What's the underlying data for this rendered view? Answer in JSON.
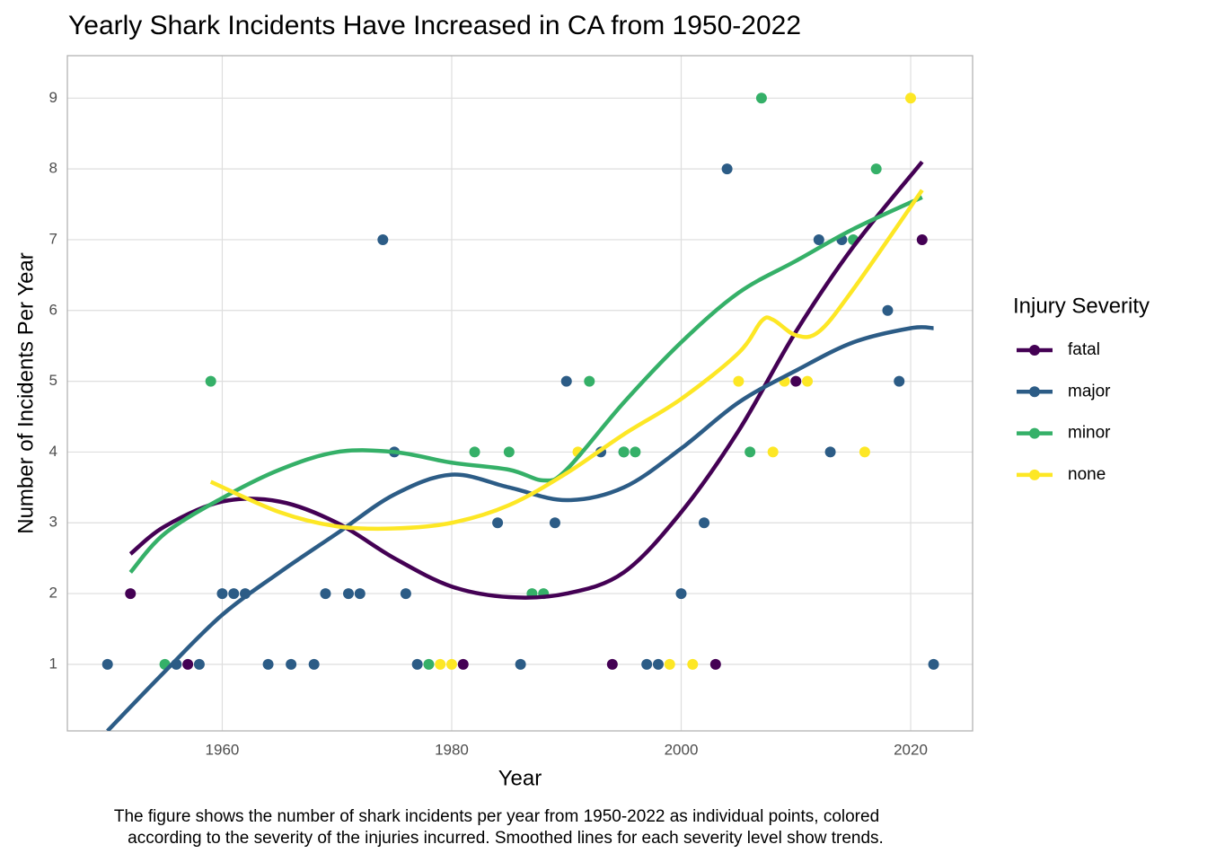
{
  "chart_data": {
    "type": "scatter",
    "title": "Yearly Shark Incidents Have Increased in CA from 1950-2022",
    "x_label": "Year",
    "y_label": "Number of Incidents Per Year",
    "caption": [
      "The figure shows the number of shark incidents per year from 1950-2022 as individual points, colored",
      "according to the severity of the injuries incurred. Smoothed lines for each severity level show trends."
    ],
    "legend_title": "Injury Severity",
    "legend": "right",
    "grid": true,
    "xlim": [
      1946.5,
      2025.4
    ],
    "ylim": [
      0.06,
      9.6
    ],
    "xticks": [
      1960,
      1980,
      2000,
      2020
    ],
    "yticks": [
      1,
      2,
      3,
      4,
      5,
      6,
      7,
      8,
      9
    ],
    "series": [
      {
        "name": "fatal",
        "color": "#440154",
        "x": [
          1952,
          1957,
          1981,
          1994,
          2003,
          2010,
          2021
        ],
        "values": [
          2,
          1,
          1,
          1,
          1,
          5,
          7
        ],
        "trend": {
          "x": [
            1952,
            1955,
            1960,
            1965,
            1970,
            1975,
            1980,
            1985,
            1990,
            1995,
            2000,
            2005,
            2010,
            2015,
            2021
          ],
          "values": [
            2.56,
            2.95,
            3.3,
            3.3,
            3.0,
            2.5,
            2.1,
            1.95,
            2.0,
            2.3,
            3.15,
            4.3,
            5.7,
            6.9,
            8.1
          ]
        }
      },
      {
        "name": "major",
        "color": "#2c5c86",
        "x": [
          1950,
          1956,
          1958,
          1960,
          1961,
          1962,
          1964,
          1966,
          1968,
          1969,
          1971,
          1972,
          1974,
          1975,
          1976,
          1977,
          1984,
          1986,
          1989,
          1990,
          1993,
          1995,
          1997,
          1998,
          2000,
          2002,
          2004,
          2012,
          2013,
          2014,
          2018,
          2019,
          2022
        ],
        "values": [
          1,
          1,
          1,
          2,
          2,
          2,
          1,
          1,
          1,
          2,
          2,
          2,
          7,
          4,
          2,
          1,
          3,
          1,
          3,
          5,
          4,
          4,
          1,
          1,
          2,
          3,
          8,
          7,
          4,
          7,
          6,
          5,
          1
        ],
        "trend": {
          "x": [
            1950,
            1955,
            1960,
            1965,
            1970,
            1975,
            1980,
            1985,
            1990,
            1995,
            2000,
            2005,
            2010,
            2015,
            2020,
            2022
          ],
          "values": [
            0.06,
            0.9,
            1.7,
            2.3,
            2.85,
            3.4,
            3.68,
            3.5,
            3.32,
            3.5,
            4.05,
            4.7,
            5.15,
            5.55,
            5.75,
            5.75
          ]
        }
      },
      {
        "name": "minor",
        "color": "#35b068",
        "x": [
          1955,
          1959,
          1978,
          1982,
          1985,
          1987,
          1988,
          1992,
          1995,
          1996,
          2006,
          2007,
          2015,
          2017
        ],
        "values": [
          1,
          5,
          1,
          4,
          4,
          2,
          2,
          5,
          4,
          4,
          4,
          9,
          7,
          8
        ],
        "trend": {
          "x": [
            1952,
            1955,
            1960,
            1965,
            1970,
            1975,
            1980,
            1985,
            1988,
            1990,
            1995,
            2000,
            2005,
            2010,
            2015,
            2021
          ],
          "values": [
            2.3,
            2.85,
            3.35,
            3.75,
            4.0,
            4.0,
            3.85,
            3.75,
            3.6,
            3.75,
            4.7,
            5.55,
            6.25,
            6.7,
            7.15,
            7.6
          ]
        }
      },
      {
        "name": "none",
        "color": "#fde725",
        "x": [
          1979,
          1980,
          1991,
          1999,
          2001,
          2005,
          2008,
          2009,
          2011,
          2016,
          2020
        ],
        "values": [
          1,
          1,
          4,
          1,
          1,
          5,
          4,
          5,
          5,
          4,
          9
        ],
        "trend": {
          "x": [
            1959,
            1965,
            1970,
            1975,
            1980,
            1985,
            1990,
            1995,
            2000,
            2005,
            2007,
            2008,
            2010,
            2012,
            2015,
            2021
          ],
          "values": [
            3.58,
            3.15,
            2.95,
            2.92,
            3.0,
            3.25,
            3.7,
            4.25,
            4.75,
            5.4,
            5.85,
            5.87,
            5.65,
            5.7,
            6.3,
            7.7
          ]
        }
      }
    ]
  }
}
